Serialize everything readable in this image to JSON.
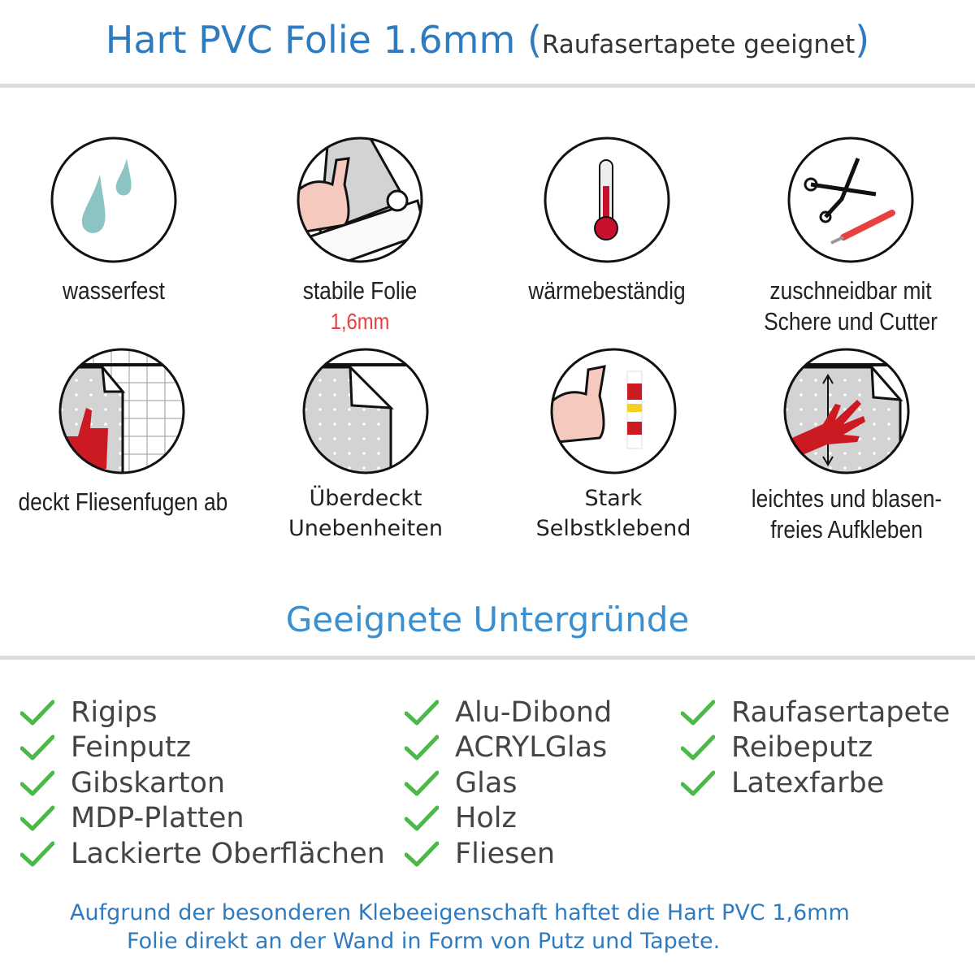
{
  "header": {
    "title": "Hart PVC Folie 1.6mm",
    "paren_open": "(",
    "subtitle": "Raufasertapete geeignet",
    "paren_close": ")"
  },
  "features": [
    {
      "icon": "water-drops-icon",
      "label": "wasserfest"
    },
    {
      "icon": "flexed-arm-foil-icon",
      "label": "stabile Folie",
      "sublabel": "1,6mm"
    },
    {
      "icon": "thermometer-icon",
      "label": "wärmebeständig"
    },
    {
      "icon": "scissors-cutter-icon",
      "label": "zuschneidbar mit",
      "label2": "Schere und Cutter"
    },
    {
      "icon": "thumbs-up-tiles-icon",
      "label": "deckt Fliesenfugen ab"
    },
    {
      "icon": "peeling-foil-icon",
      "label": "Überdeckt",
      "label2": "Unebenheiten"
    },
    {
      "icon": "flexed-arm-glue-icon",
      "label": "Stark",
      "label2": "Selbstklebend"
    },
    {
      "icon": "hand-smoothing-icon",
      "label": "leichtes und blasen-",
      "label2": "freies Aufkleben"
    }
  ],
  "section": {
    "title": "Geeignete Untergründe"
  },
  "surfaces": {
    "col1": [
      "Rigips",
      "Feinputz",
      "Gibskarton",
      "MDP-Platten",
      "Lackierte Oberflächen"
    ],
    "col2": [
      "Alu-Dibond",
      "ACRYLGlas",
      "Glas",
      "Holz",
      "Fliesen"
    ],
    "col3": [
      "Raufasertapete",
      "Reibeputz",
      "Latexfarbe"
    ]
  },
  "footer": {
    "line1": "Aufgrund der besonderen Klebeeigenschaft haftet die Hart PVC 1,6mm",
    "line2": "Folie direkt an der Wand in Form von Putz und Tapete."
  },
  "colors": {
    "title": "#2f7bbf",
    "section": "#3a8fd0",
    "check": "#4cb848",
    "accent_red": "#e8403f"
  }
}
